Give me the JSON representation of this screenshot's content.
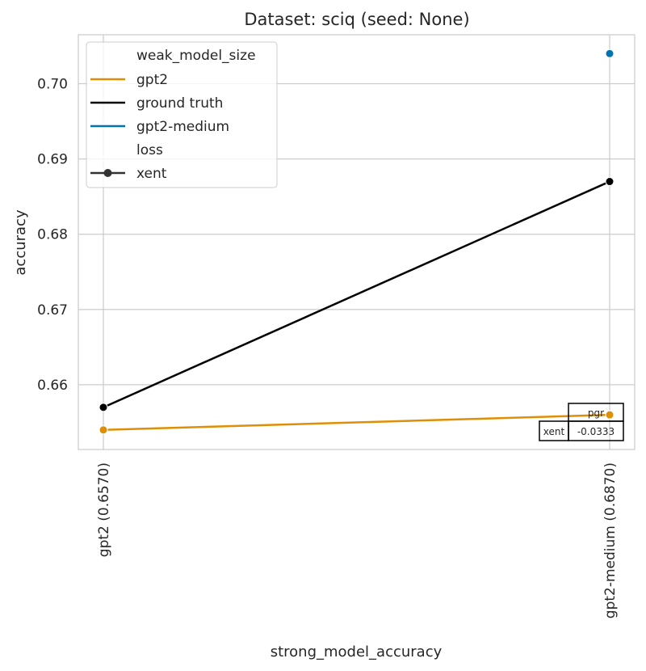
{
  "chart_data": {
    "type": "line",
    "title": "Dataset: sciq (seed: None)",
    "xlabel": "strong_model_accuracy",
    "ylabel": "accuracy",
    "categories": [
      "gpt2 (0.6570)",
      "gpt2-medium (0.6870)"
    ],
    "ylim": [
      0.6514,
      0.7065
    ],
    "yticks": [
      0.66,
      0.67,
      0.68,
      0.69,
      0.7
    ],
    "ytick_labels": [
      "0.66",
      "0.67",
      "0.68",
      "0.69",
      "0.70"
    ],
    "grid": true,
    "series": [
      {
        "name": "gpt2",
        "color": "#de8f05",
        "values": [
          0.654,
          0.656
        ]
      },
      {
        "name": "ground truth",
        "color": "#000000",
        "values": [
          0.657,
          0.687
        ]
      },
      {
        "name": "gpt2-medium",
        "color": "#0173b2",
        "values": [
          null,
          0.704
        ]
      }
    ],
    "legend": {
      "placement": "upper left",
      "hue_title": "weak_model_size",
      "hue_entries": [
        {
          "label": "gpt2",
          "color": "#de8f05"
        },
        {
          "label": "ground truth",
          "color": "#000000"
        },
        {
          "label": "gpt2-medium",
          "color": "#0173b2"
        }
      ],
      "style_title": "loss",
      "style_entries": [
        {
          "label": "xent",
          "color": "#333333"
        }
      ]
    },
    "table": {
      "column_label": "pgr",
      "row_label": "xent",
      "value": "-0.0333"
    }
  }
}
